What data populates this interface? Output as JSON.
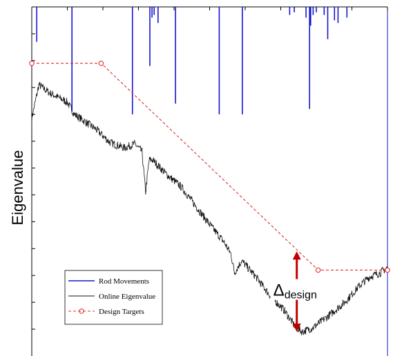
{
  "chart_data": {
    "type": "line",
    "title": "",
    "xlabel": "",
    "ylabel": "Eigenvalue",
    "xlim": [
      0,
      100
    ],
    "ylim": [
      0,
      13
    ],
    "grid": false,
    "legend_position": "bottom-left",
    "y_ticks": [
      1,
      2,
      3,
      4,
      5,
      6,
      7,
      8,
      9,
      10,
      11,
      12
    ],
    "x_ticks": [
      10,
      20,
      30,
      40,
      50,
      60,
      70,
      80,
      90,
      100
    ],
    "series": [
      {
        "name": "Rod Movements",
        "color": "#1414d2",
        "style": "spikes",
        "baseline": 13,
        "spikes": [
          {
            "x": 1.4,
            "y": 11.7
          },
          {
            "x": 11.3,
            "y": 9.1
          },
          {
            "x": 28.3,
            "y": 9.0
          },
          {
            "x": 33.2,
            "y": 10.8
          },
          {
            "x": 33.8,
            "y": 12.6
          },
          {
            "x": 34.4,
            "y": 12.7
          },
          {
            "x": 35.5,
            "y": 12.4
          },
          {
            "x": 40.4,
            "y": 9.4
          },
          {
            "x": 52.7,
            "y": 9.0
          },
          {
            "x": 59.2,
            "y": 9.0
          },
          {
            "x": 72.5,
            "y": 12.7
          },
          {
            "x": 73.8,
            "y": 12.8
          },
          {
            "x": 77.1,
            "y": 12.6
          },
          {
            "x": 78.1,
            "y": 9.2
          },
          {
            "x": 78.4,
            "y": 12.3
          },
          {
            "x": 79.1,
            "y": 12.7
          },
          {
            "x": 80.0,
            "y": 12.8
          },
          {
            "x": 82.2,
            "y": 12.7
          },
          {
            "x": 83.2,
            "y": 11.8
          },
          {
            "x": 85.1,
            "y": 12.5
          },
          {
            "x": 86.1,
            "y": 12.4
          },
          {
            "x": 88.6,
            "y": 12.6
          }
        ]
      },
      {
        "name": "Online Eigenvalue",
        "color": "#111111",
        "style": "noisy-line",
        "noise": 0.15,
        "values": [
          [
            0,
            8.85
          ],
          [
            2,
            10.1
          ],
          [
            5,
            9.8
          ],
          [
            10,
            9.45
          ],
          [
            12,
            9.0
          ],
          [
            18,
            8.45
          ],
          [
            22,
            7.95
          ],
          [
            26,
            7.75
          ],
          [
            29,
            7.9
          ],
          [
            31,
            7.6
          ],
          [
            32,
            6.1
          ],
          [
            33,
            7.3
          ],
          [
            34,
            7.3
          ],
          [
            38,
            6.75
          ],
          [
            42,
            6.3
          ],
          [
            46,
            5.6
          ],
          [
            50,
            4.9
          ],
          [
            54,
            4.25
          ],
          [
            56,
            3.8
          ],
          [
            57,
            3.1
          ],
          [
            59,
            3.55
          ],
          [
            63,
            2.95
          ],
          [
            67,
            2.25
          ],
          [
            71,
            1.7
          ],
          [
            74,
            1.1
          ],
          [
            76,
            0.9
          ],
          [
            79,
            1.05
          ],
          [
            83,
            1.45
          ],
          [
            88,
            2.0
          ],
          [
            92,
            2.6
          ],
          [
            95,
            2.95
          ],
          [
            98,
            3.1
          ],
          [
            100,
            3.3
          ]
        ]
      },
      {
        "name": "Design Targets",
        "color": "#e52b2b",
        "style": "dashed-markers",
        "values": [
          [
            0,
            10.9
          ],
          [
            19.5,
            10.9
          ],
          [
            80.5,
            3.2
          ],
          [
            100,
            3.2
          ]
        ]
      }
    ],
    "annotations": [
      {
        "type": "arrow",
        "label": "Δ",
        "label_subscript": "design",
        "color": "#c00000",
        "x": 74.5,
        "y_from": 3.9,
        "y_to": 0.9
      }
    ]
  }
}
